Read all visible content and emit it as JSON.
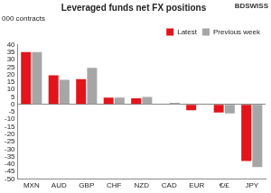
{
  "chart_data": {
    "type": "bar",
    "title": "Leveraged funds net FX positions",
    "subtitle": "000 contracts",
    "annotations": [
      "BDSWISS"
    ],
    "categories": [
      "MXN",
      "AUD",
      "GBP",
      "CHF",
      "NZD",
      "CAD",
      "EUR",
      "€/£",
      "JPY"
    ],
    "series": [
      {
        "name": "Latest",
        "color": "#e3141b",
        "values": [
          35,
          19.5,
          17,
          4.5,
          4,
          0.3,
          -4,
          -5.5,
          -38
        ]
      },
      {
        "name": "Previous week",
        "color": "#a6a6a6",
        "values": [
          35,
          16.5,
          24.5,
          4.5,
          5,
          1,
          0,
          -6,
          -42
        ]
      }
    ],
    "ylim": [
      -50,
      40
    ],
    "yticks": [
      -50,
      -45,
      -40,
      -35,
      -30,
      -25,
      -20,
      -15,
      -10,
      -5,
      0,
      5,
      10,
      15,
      20,
      25,
      30,
      35,
      40
    ],
    "grid": false,
    "legend": "top-right"
  }
}
